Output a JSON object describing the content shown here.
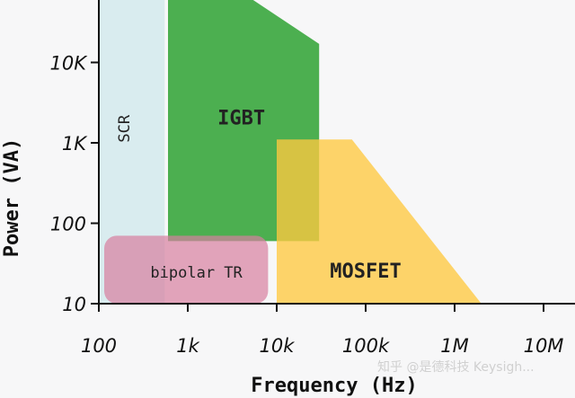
{
  "chart_data": {
    "type": "area",
    "xlabel": "Frequency (Hz)",
    "ylabel": "Power (VA)",
    "x_scale": "log",
    "y_scale": "log",
    "xlim": [
      100,
      10000000
    ],
    "ylim": [
      10,
      100000
    ],
    "x_ticks": [
      {
        "value": 100,
        "label": "100"
      },
      {
        "value": 1000,
        "label": "1k"
      },
      {
        "value": 10000,
        "label": "10k"
      },
      {
        "value": 100000,
        "label": "100k"
      },
      {
        "value": 1000000,
        "label": "1M"
      },
      {
        "value": 10000000,
        "label": "10M"
      }
    ],
    "y_ticks": [
      {
        "value": 10,
        "label": "10"
      },
      {
        "value": 100,
        "label": "100"
      },
      {
        "value": 1000,
        "label": "1K"
      },
      {
        "value": 10000,
        "label": "10K"
      }
    ],
    "regions": [
      {
        "name": "SCR",
        "color": "#d9ecef",
        "points": [
          [
            100,
            10
          ],
          [
            100,
            100000
          ],
          [
            550,
            100000
          ],
          [
            550,
            10
          ]
        ]
      },
      {
        "name": "IGBT",
        "color": "#4caf50",
        "points": [
          [
            600,
            60
          ],
          [
            600,
            100000
          ],
          [
            2700,
            100000
          ],
          [
            30000,
            17000
          ],
          [
            30000,
            60
          ]
        ]
      },
      {
        "name": "MOSFET",
        "color": "#ffc940",
        "points": [
          [
            10000,
            10
          ],
          [
            10000,
            1100
          ],
          [
            70000,
            1100
          ],
          [
            2000000,
            10
          ]
        ]
      },
      {
        "name": "bipolar TR",
        "color": "#d77fa0",
        "points": [
          [
            100,
            10
          ],
          [
            100,
            70
          ],
          [
            8000,
            70
          ],
          [
            8000,
            10
          ]
        ]
      }
    ]
  },
  "watermark": "知乎 @是德科技 Keysigh..."
}
